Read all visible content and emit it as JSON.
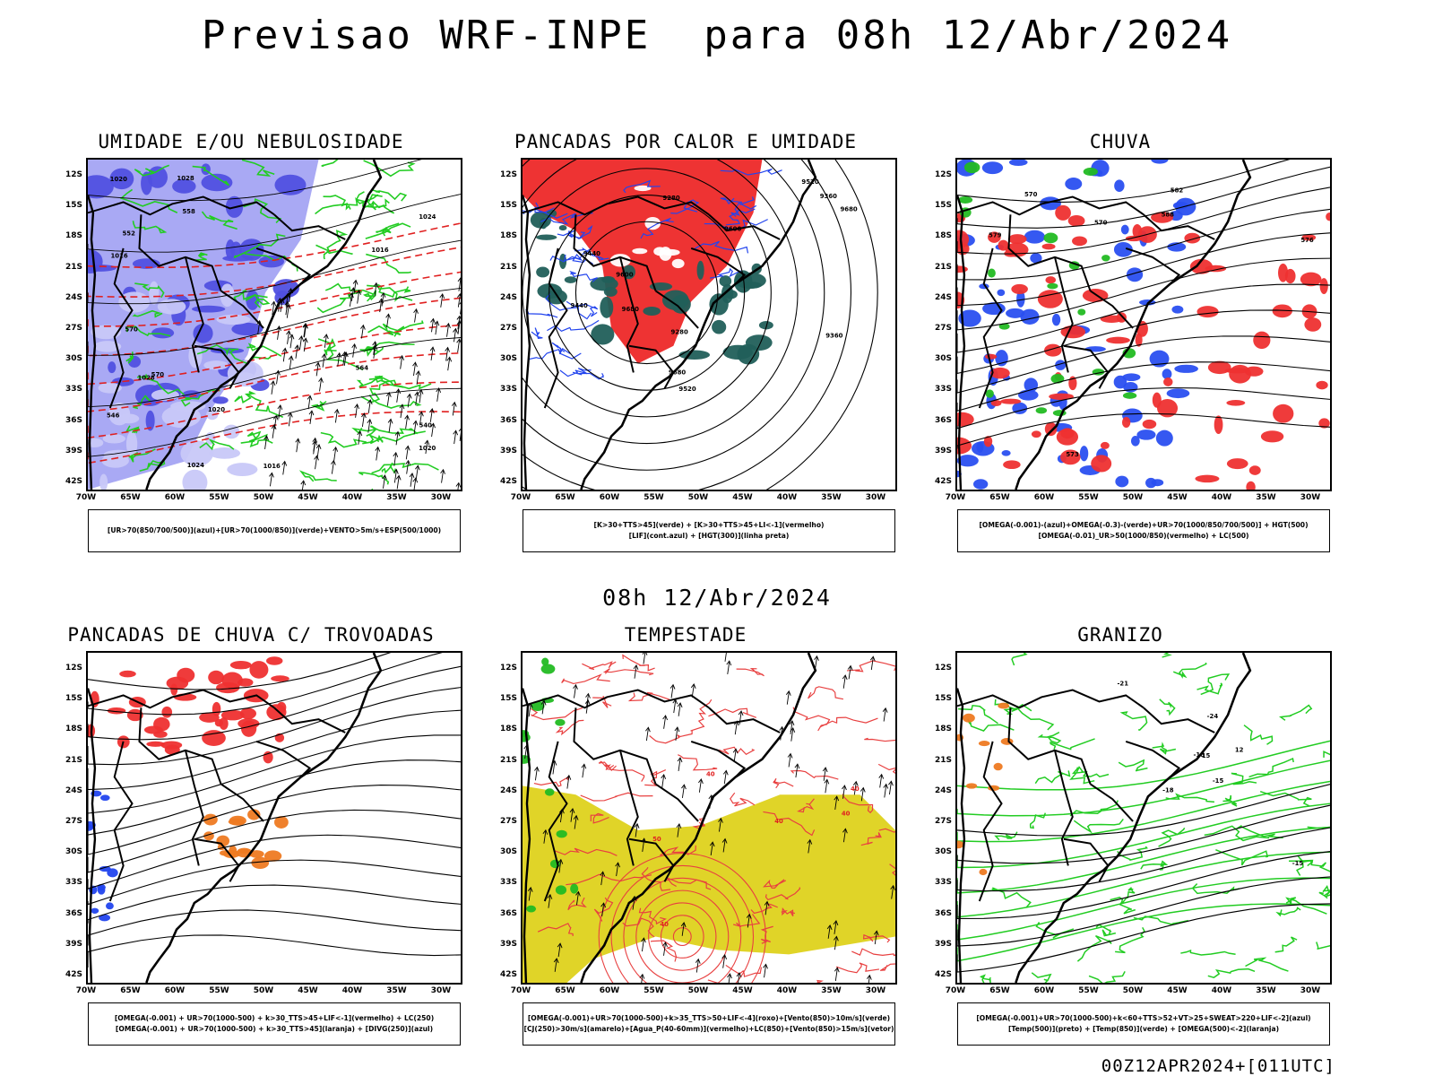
{
  "header": {
    "main_title": "Previsao WRF-INPE  para 08h 12/Abr/2024",
    "middle_title": "08h 12/Abr/2024",
    "footer": "00Z12APR2024+[011UTC]"
  },
  "axes": {
    "lat_ticks": [
      "12S",
      "15S",
      "18S",
      "21S",
      "24S",
      "27S",
      "30S",
      "33S",
      "36S",
      "39S",
      "42S"
    ],
    "lon_ticks": [
      "70W",
      "65W",
      "60W",
      "55W",
      "50W",
      "45W",
      "40W",
      "35W",
      "30W"
    ]
  },
  "panels": [
    {
      "id": "umidade",
      "title": "UMIDADE E/OU NEBULOSIDADE",
      "legend": [
        "[UR>70(850/700/500)](azul)+[UR>70(1000/850)](verde)+VENTO>5m/s+ESP(500/1000)"
      ],
      "contour_labels": [
        "1016",
        "1016",
        "1020",
        "1020",
        "1016",
        "1020",
        "1024",
        "1028",
        "1028",
        "1024",
        "570",
        "570",
        "564",
        "558",
        "552",
        "546",
        "540"
      ]
    },
    {
      "id": "pancadas-calor",
      "title": "PANCADAS POR CALOR E UMIDADE",
      "legend": [
        "[K>30+TTS>45](verde) + [K>30+TTS>45+LI<-1](vermelho)",
        "[LIF](cont.azul) + [HGT(300)](linha preta)"
      ],
      "contour_labels": [
        "9680",
        "9600",
        "9520",
        "9440",
        "9360",
        "9280",
        "9600",
        "9520",
        "9440",
        "9360",
        "9280",
        "9680",
        "9680"
      ]
    },
    {
      "id": "chuva",
      "title": "CHUVA",
      "legend": [
        "[OMEGA(-0.001)-(azul)+OMEGA(-0.3)-(verde)+UR>70(1000/850/700/500)] + HGT(500)",
        "[OMEGA(-0.01)_UR>50(1000/850)(vermelho) + LC(500)"
      ],
      "contour_labels": [
        "588",
        "582",
        "576",
        "570",
        "573",
        "579",
        "570"
      ]
    },
    {
      "id": "trovoadas",
      "title": "PANCADAS DE CHUVA C/ TROVOADAS",
      "legend": [
        "[OMEGA(-0.001) + UR>70(1000-500) + k>30_TTS>45+LIF<-1](vermelho) + LC(250)",
        "[OMEGA(-0.001) + UR>70(1000-500) + k>30_TTS>45](laranja) + [DIVG(250)](azul)"
      ],
      "contour_labels": []
    },
    {
      "id": "tempestade",
      "title": "TEMPESTADE",
      "legend": [
        "[OMEGA(-0.001)+UR>70(1000-500)+k>35_TTS>50+LIF<-4](roxo)+[Vento(850)>10m/s](verde)",
        "[CJ(250)>30m/s](amarelo)+[Agua_P(40-60mm)](vermelho)+LC(850)+[Vento(850)>15m/s](vetor)"
      ],
      "contour_labels": [
        "40",
        "40",
        "40",
        "40",
        "50",
        "40"
      ]
    },
    {
      "id": "granizo",
      "title": "GRANIZO",
      "legend": [
        "[OMEGA(-0.001)+UR>70(1000-500)+k<60+TTS>52+VT>25+SWEAT>220+LIF<-2](azul)",
        "[Temp(500)](preto) + [Temp(850)](verde) + [OMEGA(500)<-2](laranja)"
      ],
      "contour_labels": [
        "-15",
        "-18",
        "-21",
        "-24",
        "-18",
        "-15",
        "12",
        "15"
      ]
    }
  ]
}
